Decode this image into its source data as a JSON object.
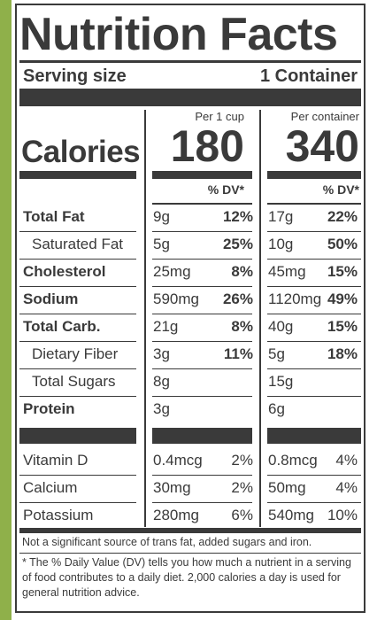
{
  "title": "Nutrition Facts",
  "serving": {
    "label": "Serving size",
    "value": "1 Container"
  },
  "columns": [
    {
      "header": "Per 1 cup",
      "calories": "180"
    },
    {
      "header": "Per container",
      "calories": "340"
    }
  ],
  "calories_label": "Calories",
  "dv_header": "% DV*",
  "nutrients": [
    {
      "name": "Total Fat",
      "bold": true,
      "c1_amt": "9g",
      "c1_dv": "12%",
      "c2_amt": "17g",
      "c2_dv": "22%"
    },
    {
      "name": "Saturated Fat",
      "bold": false,
      "c1_amt": "5g",
      "c1_dv": "25%",
      "c2_amt": "10g",
      "c2_dv": "50%"
    },
    {
      "name": "Cholesterol",
      "bold": true,
      "c1_amt": "25mg",
      "c1_dv": "8%",
      "c2_amt": "45mg",
      "c2_dv": "15%"
    },
    {
      "name": "Sodium",
      "bold": true,
      "c1_amt": "590mg",
      "c1_dv": "26%",
      "c2_amt": "1120mg",
      "c2_dv": "49%"
    },
    {
      "name": "Total Carb.",
      "bold": true,
      "c1_amt": "21g",
      "c1_dv": "8%",
      "c2_amt": "40g",
      "c2_dv": "15%"
    },
    {
      "name": "Dietary Fiber",
      "bold": false,
      "c1_amt": "3g",
      "c1_dv": "11%",
      "c2_amt": "5g",
      "c2_dv": "18%"
    },
    {
      "name": "Total Sugars",
      "bold": false,
      "c1_amt": "8g",
      "c1_dv": "",
      "c2_amt": "15g",
      "c2_dv": ""
    },
    {
      "name": "Protein",
      "bold": true,
      "c1_amt": "3g",
      "c1_dv": "",
      "c2_amt": "6g",
      "c2_dv": ""
    }
  ],
  "vitamins": [
    {
      "name": "Vitamin D",
      "c1_amt": "0.4mcg",
      "c1_dv": "2%",
      "c2_amt": "0.8mcg",
      "c2_dv": "4%"
    },
    {
      "name": "Calcium",
      "c1_amt": "30mg",
      "c1_dv": "2%",
      "c2_amt": "50mg",
      "c2_dv": "4%"
    },
    {
      "name": "Potassium",
      "c1_amt": "280mg",
      "c1_dv": "6%",
      "c2_amt": "540mg",
      "c2_dv": "10%"
    }
  ],
  "footnote_1": "Not a significant source of trans fat, added sugars and iron.",
  "footnote_2": [
    "* The % Daily Value (DV) tells you how much a nutrient in a serving",
    "of food contributes to a daily diet. 2,000 calories a day is used for",
    "general nutrition advice."
  ]
}
